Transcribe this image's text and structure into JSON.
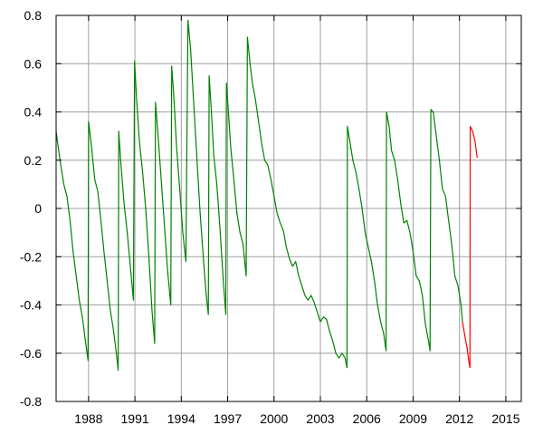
{
  "chart_data": {
    "type": "line",
    "title": "",
    "xlabel": "",
    "ylabel": "",
    "xlim": [
      1985.9,
      2016.0
    ],
    "ylim": [
      -0.8,
      0.8
    ],
    "grid": true,
    "legend": "none",
    "x_ticks": [
      1988,
      1991,
      1994,
      1997,
      2000,
      2003,
      2006,
      2009,
      2012,
      2015
    ],
    "x_tick_labels": [
      "1988",
      "1991",
      "1994",
      "1997",
      "2000",
      "2003",
      "2006",
      "2009",
      "2012",
      "2015"
    ],
    "y_ticks": [
      -0.8,
      -0.6,
      -0.4,
      -0.2,
      0,
      0.2,
      0.4,
      0.6,
      0.8
    ],
    "y_tick_labels": [
      "-0.8",
      "-0.6",
      "-0.4",
      "-0.2",
      "0",
      "0.2",
      "0.4",
      "0.6",
      "0.8"
    ],
    "series": [
      {
        "color": "#008000",
        "points": [
          [
            1985.9,
            0.32
          ],
          [
            1986.0,
            0.27
          ],
          [
            1986.2,
            0.18
          ],
          [
            1986.4,
            0.1
          ],
          [
            1986.6,
            0.05
          ],
          [
            1986.8,
            -0.05
          ],
          [
            1987.0,
            -0.18
          ],
          [
            1987.2,
            -0.28
          ],
          [
            1987.4,
            -0.38
          ],
          [
            1987.6,
            -0.45
          ],
          [
            1987.8,
            -0.55
          ],
          [
            1987.97,
            -0.63
          ],
          [
            1988.0,
            0.36
          ],
          [
            1988.2,
            0.25
          ],
          [
            1988.4,
            0.12
          ],
          [
            1988.6,
            0.07
          ],
          [
            1988.8,
            -0.05
          ],
          [
            1989.0,
            -0.18
          ],
          [
            1989.2,
            -0.3
          ],
          [
            1989.4,
            -0.42
          ],
          [
            1989.6,
            -0.5
          ],
          [
            1989.8,
            -0.6
          ],
          [
            1989.92,
            -0.67
          ],
          [
            1989.95,
            0.32
          ],
          [
            1990.1,
            0.18
          ],
          [
            1990.3,
            0.02
          ],
          [
            1990.5,
            -0.1
          ],
          [
            1990.7,
            -0.24
          ],
          [
            1990.9,
            -0.38
          ],
          [
            1990.98,
            0.61
          ],
          [
            1991.1,
            0.46
          ],
          [
            1991.3,
            0.27
          ],
          [
            1991.5,
            0.15
          ],
          [
            1991.7,
            0.0
          ],
          [
            1991.9,
            -0.2
          ],
          [
            1992.1,
            -0.42
          ],
          [
            1992.28,
            -0.56
          ],
          [
            1992.33,
            0.44
          ],
          [
            1992.5,
            0.3
          ],
          [
            1992.7,
            0.12
          ],
          [
            1992.9,
            -0.06
          ],
          [
            1993.1,
            -0.25
          ],
          [
            1993.32,
            -0.4
          ],
          [
            1993.38,
            0.59
          ],
          [
            1993.5,
            0.48
          ],
          [
            1993.7,
            0.25
          ],
          [
            1993.9,
            0.08
          ],
          [
            1994.1,
            -0.1
          ],
          [
            1994.3,
            -0.22
          ],
          [
            1994.43,
            0.78
          ],
          [
            1994.6,
            0.66
          ],
          [
            1994.8,
            0.44
          ],
          [
            1995.0,
            0.22
          ],
          [
            1995.2,
            0.0
          ],
          [
            1995.4,
            -0.18
          ],
          [
            1995.6,
            -0.35
          ],
          [
            1995.75,
            -0.44
          ],
          [
            1995.8,
            0.55
          ],
          [
            1995.95,
            0.4
          ],
          [
            1996.1,
            0.22
          ],
          [
            1996.3,
            0.1
          ],
          [
            1996.5,
            -0.08
          ],
          [
            1996.7,
            -0.28
          ],
          [
            1996.88,
            -0.44
          ],
          [
            1996.92,
            0.52
          ],
          [
            1997.05,
            0.4
          ],
          [
            1997.2,
            0.25
          ],
          [
            1997.4,
            0.12
          ],
          [
            1997.6,
            -0.02
          ],
          [
            1997.8,
            -0.1
          ],
          [
            1998.0,
            -0.15
          ],
          [
            1998.2,
            -0.28
          ],
          [
            1998.28,
            0.71
          ],
          [
            1998.45,
            0.6
          ],
          [
            1998.6,
            0.52
          ],
          [
            1998.8,
            0.45
          ],
          [
            1999.0,
            0.36
          ],
          [
            1999.2,
            0.27
          ],
          [
            1999.4,
            0.2
          ],
          [
            1999.6,
            0.18
          ],
          [
            1999.8,
            0.12
          ],
          [
            2000.0,
            0.05
          ],
          [
            2000.2,
            -0.02
          ],
          [
            2000.4,
            -0.06
          ],
          [
            2000.6,
            -0.09
          ],
          [
            2000.8,
            -0.16
          ],
          [
            2001.0,
            -0.21
          ],
          [
            2001.2,
            -0.24
          ],
          [
            2001.4,
            -0.22
          ],
          [
            2001.6,
            -0.28
          ],
          [
            2001.8,
            -0.32
          ],
          [
            2002.0,
            -0.36
          ],
          [
            2002.2,
            -0.38
          ],
          [
            2002.4,
            -0.36
          ],
          [
            2002.6,
            -0.39
          ],
          [
            2002.8,
            -0.43
          ],
          [
            2003.0,
            -0.47
          ],
          [
            2003.2,
            -0.45
          ],
          [
            2003.4,
            -0.46
          ],
          [
            2003.6,
            -0.51
          ],
          [
            2003.8,
            -0.55
          ],
          [
            2004.0,
            -0.6
          ],
          [
            2004.2,
            -0.62
          ],
          [
            2004.4,
            -0.6
          ],
          [
            2004.6,
            -0.62
          ],
          [
            2004.72,
            -0.66
          ],
          [
            2004.75,
            0.34
          ],
          [
            2004.9,
            0.28
          ],
          [
            2005.1,
            0.2
          ],
          [
            2005.3,
            0.15
          ],
          [
            2005.5,
            0.08
          ],
          [
            2005.7,
            0.0
          ],
          [
            2005.9,
            -0.1
          ],
          [
            2006.1,
            -0.16
          ],
          [
            2006.3,
            -0.22
          ],
          [
            2006.5,
            -0.3
          ],
          [
            2006.7,
            -0.4
          ],
          [
            2006.9,
            -0.47
          ],
          [
            2007.1,
            -0.52
          ],
          [
            2007.25,
            -0.59
          ],
          [
            2007.28,
            0.4
          ],
          [
            2007.45,
            0.34
          ],
          [
            2007.6,
            0.24
          ],
          [
            2007.8,
            0.2
          ],
          [
            2008.0,
            0.12
          ],
          [
            2008.2,
            0.02
          ],
          [
            2008.4,
            -0.06
          ],
          [
            2008.6,
            -0.05
          ],
          [
            2008.8,
            -0.1
          ],
          [
            2009.0,
            -0.18
          ],
          [
            2009.2,
            -0.28
          ],
          [
            2009.4,
            -0.3
          ],
          [
            2009.6,
            -0.36
          ],
          [
            2009.8,
            -0.48
          ],
          [
            2010.0,
            -0.55
          ],
          [
            2010.1,
            -0.59
          ],
          [
            2010.15,
            0.41
          ],
          [
            2010.3,
            0.4
          ],
          [
            2010.5,
            0.3
          ],
          [
            2010.7,
            0.2
          ],
          [
            2010.9,
            0.08
          ],
          [
            2011.1,
            0.05
          ],
          [
            2011.3,
            -0.05
          ],
          [
            2011.5,
            -0.15
          ],
          [
            2011.7,
            -0.28
          ],
          [
            2011.9,
            -0.32
          ],
          [
            2012.1,
            -0.4
          ],
          [
            2012.2,
            -0.47
          ]
        ]
      },
      {
        "color": "#ff0000",
        "points": [
          [
            2012.2,
            -0.47
          ],
          [
            2012.35,
            -0.53
          ],
          [
            2012.5,
            -0.58
          ],
          [
            2012.62,
            -0.64
          ],
          [
            2012.68,
            -0.66
          ],
          [
            2012.7,
            0.34
          ],
          [
            2012.85,
            0.32
          ],
          [
            2013.0,
            0.28
          ],
          [
            2013.15,
            0.21
          ]
        ]
      }
    ]
  }
}
